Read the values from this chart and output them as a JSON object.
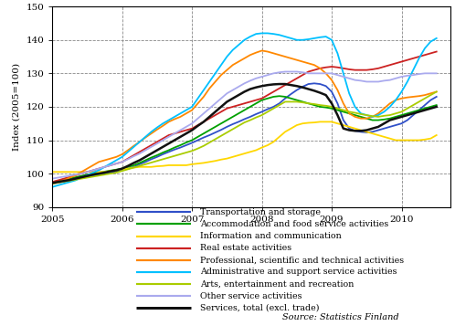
{
  "ylabel": "Index (2005=100)",
  "ylim": [
    90,
    150
  ],
  "yticks": [
    90,
    100,
    110,
    120,
    130,
    140,
    150
  ],
  "xlim": [
    2005.0,
    2010.7
  ],
  "xticks": [
    2005,
    2006,
    2007,
    2008,
    2009,
    2010
  ],
  "source_text": "Source: Statistics Finland",
  "series": {
    "Transportation and storage": {
      "color": "#3050C8",
      "lw": 1.3,
      "data_y": [
        97.0,
        97.3,
        97.6,
        97.9,
        98.3,
        98.7,
        99.1,
        99.4,
        99.7,
        100.0,
        100.3,
        100.6,
        101.0,
        101.5,
        102.0,
        102.8,
        103.5,
        104.3,
        105.0,
        105.8,
        106.5,
        107.2,
        107.8,
        108.5,
        109.2,
        110.0,
        110.8,
        111.5,
        112.3,
        113.1,
        114.0,
        114.8,
        115.5,
        116.3,
        117.0,
        117.8,
        118.5,
        119.3,
        120.0,
        121.0,
        122.5,
        123.8,
        125.0,
        126.0,
        126.8,
        127.0,
        126.8,
        126.2,
        124.5,
        121.0,
        116.0,
        113.5,
        112.8,
        112.5,
        112.3,
        112.5,
        113.0,
        113.5,
        114.0,
        114.5,
        115.0,
        116.0,
        117.5,
        119.0,
        120.5,
        122.0,
        123.0
      ]
    },
    "Accommodation and food service activities": {
      "color": "#00A000",
      "lw": 1.3,
      "data_y": [
        97.5,
        97.8,
        98.1,
        98.5,
        98.9,
        99.3,
        99.7,
        100.0,
        100.3,
        100.6,
        100.9,
        101.2,
        101.5,
        102.0,
        102.5,
        103.2,
        104.0,
        104.8,
        105.5,
        106.3,
        107.0,
        107.8,
        108.5,
        109.3,
        110.0,
        111.0,
        112.0,
        113.0,
        114.0,
        115.0,
        116.0,
        117.0,
        118.0,
        119.0,
        120.0,
        121.0,
        122.0,
        122.5,
        123.0,
        123.2,
        123.0,
        122.5,
        122.0,
        121.5,
        121.0,
        120.5,
        120.0,
        119.8,
        119.5,
        119.0,
        118.5,
        118.0,
        117.5,
        117.0,
        116.5,
        116.0,
        116.0,
        116.2,
        116.5,
        117.0,
        117.5,
        118.0,
        118.5,
        119.0,
        119.5,
        120.0,
        120.5
      ]
    },
    "Information and communication": {
      "color": "#FFD700",
      "lw": 1.3,
      "data_y": [
        100.5,
        100.5,
        100.5,
        100.5,
        100.5,
        100.5,
        100.5,
        100.5,
        100.5,
        100.5,
        100.8,
        101.0,
        101.3,
        101.5,
        101.8,
        102.0,
        102.0,
        102.0,
        102.2,
        102.3,
        102.5,
        102.5,
        102.5,
        102.5,
        102.8,
        103.0,
        103.2,
        103.5,
        103.8,
        104.2,
        104.5,
        105.0,
        105.5,
        106.0,
        106.5,
        107.0,
        107.8,
        108.5,
        109.5,
        111.0,
        112.5,
        113.5,
        114.5,
        115.0,
        115.2,
        115.3,
        115.5,
        115.5,
        115.5,
        115.0,
        114.5,
        114.0,
        113.5,
        113.0,
        112.5,
        112.0,
        111.5,
        111.0,
        110.5,
        110.0,
        110.0,
        110.0,
        110.0,
        110.0,
        110.2,
        110.5,
        111.5
      ]
    },
    "Real estate activities": {
      "color": "#CC2222",
      "lw": 1.3,
      "data_y": [
        97.5,
        98.0,
        98.5,
        99.0,
        99.5,
        100.0,
        100.5,
        101.0,
        101.5,
        102.0,
        102.5,
        103.0,
        103.5,
        104.5,
        105.5,
        106.5,
        107.5,
        108.5,
        109.5,
        110.5,
        111.5,
        112.0,
        112.5,
        113.0,
        113.5,
        114.5,
        115.5,
        116.5,
        117.5,
        118.5,
        119.5,
        120.0,
        120.5,
        121.0,
        121.5,
        122.0,
        122.5,
        123.5,
        124.5,
        125.5,
        126.5,
        127.5,
        128.5,
        129.5,
        130.5,
        131.0,
        131.5,
        131.8,
        132.0,
        131.8,
        131.5,
        131.2,
        131.0,
        131.0,
        131.0,
        131.2,
        131.5,
        132.0,
        132.5,
        133.0,
        133.5,
        134.0,
        134.5,
        135.0,
        135.5,
        136.0,
        136.5
      ]
    },
    "Professional, scientific and technical activities": {
      "color": "#FF8800",
      "lw": 1.3,
      "data_y": [
        97.0,
        97.5,
        98.0,
        98.8,
        99.5,
        100.5,
        101.5,
        102.5,
        103.5,
        104.0,
        104.5,
        105.0,
        105.8,
        107.0,
        108.3,
        109.5,
        110.8,
        112.0,
        113.2,
        114.3,
        115.5,
        116.3,
        117.0,
        118.0,
        119.0,
        121.0,
        123.0,
        125.5,
        127.5,
        129.5,
        131.0,
        132.5,
        133.5,
        134.5,
        135.5,
        136.2,
        136.8,
        136.5,
        136.0,
        135.5,
        135.0,
        134.5,
        134.0,
        133.5,
        133.0,
        132.5,
        131.5,
        130.0,
        128.0,
        125.0,
        121.0,
        118.0,
        117.0,
        116.5,
        116.5,
        117.0,
        118.0,
        119.5,
        121.0,
        122.0,
        122.5,
        122.8,
        123.0,
        123.2,
        123.5,
        124.0,
        124.5
      ]
    },
    "Administrative and support service activities": {
      "color": "#00C0FF",
      "lw": 1.3,
      "data_y": [
        96.0,
        96.5,
        97.0,
        97.5,
        98.0,
        98.8,
        99.5,
        100.3,
        101.0,
        102.0,
        103.0,
        104.0,
        105.0,
        106.5,
        108.0,
        109.5,
        111.0,
        112.5,
        113.8,
        115.0,
        116.0,
        117.0,
        118.0,
        119.0,
        120.0,
        122.5,
        125.0,
        127.5,
        130.0,
        132.5,
        135.0,
        137.0,
        138.5,
        140.0,
        141.0,
        141.8,
        142.0,
        142.0,
        141.8,
        141.5,
        141.0,
        140.5,
        140.0,
        140.0,
        140.2,
        140.5,
        140.8,
        141.0,
        140.0,
        136.0,
        130.0,
        124.0,
        120.0,
        118.0,
        117.5,
        117.0,
        117.5,
        118.5,
        120.0,
        122.0,
        124.5,
        127.5,
        131.0,
        134.5,
        137.5,
        139.5,
        140.5
      ]
    },
    "Arts, entertainment and recreation": {
      "color": "#AACC00",
      "lw": 1.3,
      "data_y": [
        97.0,
        97.3,
        97.6,
        97.9,
        98.2,
        98.5,
        98.8,
        99.1,
        99.4,
        99.7,
        100.0,
        100.3,
        100.8,
        101.3,
        101.8,
        102.3,
        102.8,
        103.3,
        103.8,
        104.3,
        104.8,
        105.3,
        105.8,
        106.3,
        106.8,
        107.5,
        108.3,
        109.3,
        110.3,
        111.3,
        112.3,
        113.3,
        114.3,
        115.3,
        116.0,
        116.8,
        117.5,
        118.5,
        119.5,
        120.5,
        121.5,
        121.5,
        121.5,
        121.3,
        121.0,
        120.8,
        120.5,
        120.3,
        120.0,
        119.5,
        119.0,
        118.5,
        118.2,
        117.8,
        117.5,
        117.2,
        117.0,
        117.3,
        117.5,
        118.0,
        118.5,
        119.5,
        120.5,
        121.5,
        122.5,
        123.5,
        124.5
      ]
    },
    "Other service activities": {
      "color": "#AAAAEE",
      "lw": 1.3,
      "data_y": [
        98.5,
        98.8,
        99.1,
        99.4,
        99.7,
        100.0,
        100.5,
        101.0,
        101.5,
        102.0,
        102.5,
        103.0,
        103.5,
        104.3,
        105.2,
        106.0,
        107.0,
        108.0,
        109.0,
        110.0,
        111.0,
        112.0,
        113.0,
        114.0,
        115.0,
        116.5,
        118.0,
        119.5,
        121.0,
        122.5,
        124.0,
        125.0,
        126.0,
        127.0,
        127.8,
        128.5,
        129.0,
        129.5,
        130.0,
        130.3,
        130.5,
        130.5,
        130.5,
        130.3,
        130.0,
        130.0,
        130.0,
        130.0,
        130.0,
        129.5,
        129.0,
        128.5,
        128.0,
        127.8,
        127.5,
        127.5,
        127.5,
        127.8,
        128.0,
        128.5,
        129.0,
        129.3,
        129.5,
        129.8,
        130.0,
        130.0,
        130.0
      ]
    },
    "Services, total (excl. trade)": {
      "color": "#111111",
      "lw": 1.8,
      "data_y": [
        97.2,
        97.5,
        97.8,
        98.1,
        98.5,
        98.9,
        99.3,
        99.7,
        100.0,
        100.3,
        100.7,
        101.0,
        101.5,
        102.3,
        103.2,
        104.0,
        105.0,
        106.0,
        107.0,
        108.0,
        109.0,
        110.0,
        111.0,
        112.0,
        113.0,
        114.3,
        115.5,
        117.0,
        118.5,
        120.0,
        121.5,
        122.5,
        123.5,
        124.5,
        125.3,
        125.8,
        126.2,
        126.5,
        126.7,
        126.8,
        126.8,
        126.5,
        126.2,
        125.8,
        125.3,
        124.8,
        124.2,
        123.5,
        121.0,
        117.5,
        113.5,
        113.0,
        112.8,
        112.8,
        113.0,
        113.5,
        114.0,
        115.0,
        116.0,
        116.5,
        117.0,
        117.5,
        118.0,
        118.5,
        119.0,
        119.5,
        120.0
      ]
    }
  },
  "legend_order": [
    "Transportation and storage",
    "Accommodation and food service activities",
    "Information and communication",
    "Real estate activities",
    "Professional, scientific and technical activities",
    "Administrative and support service activities",
    "Arts, entertainment and recreation",
    "Other service activities",
    "Services, total (excl. trade)"
  ]
}
